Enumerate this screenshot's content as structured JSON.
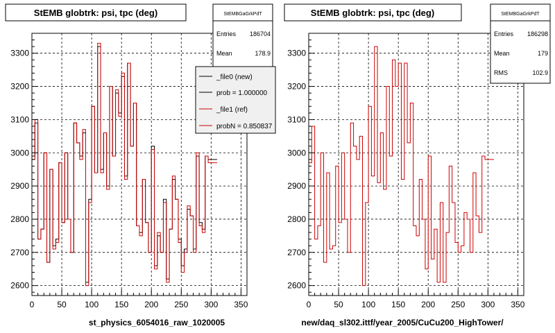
{
  "chart_data": [
    {
      "type": "histogram",
      "title": "StEMB globtrk: psi, tpc (deg)",
      "stats": {
        "name": "StEMBGaGrkPdT",
        "rows": [
          {
            "label": "Entries",
            "value": "186704"
          },
          {
            "label": "Mean",
            "value": "178.9"
          }
        ]
      },
      "legend": {
        "placement": "top-right",
        "entries": [
          {
            "label": "_file0 (new)",
            "color": "#000000"
          },
          {
            "label": "prob = 1.000000",
            "color": "#000000"
          },
          {
            "label": "_file1 (ref)",
            "color": "#cc0000"
          },
          {
            "label": "probN = 0.850837",
            "color": "#cc0000"
          }
        ]
      },
      "xlabel": "st_physics_6054016_raw_1020005",
      "xlim": [
        0,
        360
      ],
      "ylim": [
        2570,
        3360
      ],
      "x_ticks": [
        0,
        50,
        100,
        150,
        200,
        250,
        300,
        350
      ],
      "y_ticks": [
        2600,
        2700,
        2800,
        2900,
        3000,
        3100,
        3200,
        3300
      ],
      "grid": true,
      "bin_width": 5,
      "series": [
        {
          "name": "_file0 (new)",
          "color": "#000000",
          "values": [
            2990,
            3090,
            2740,
            2770,
            3000,
            2670,
            2950,
            2720,
            2740,
            2970,
            2790,
            3000,
            2800,
            2700,
            3090,
            3030,
            2990,
            3060,
            2610,
            2860,
            3140,
            2940,
            3320,
            2950,
            3060,
            2900,
            3200,
            2990,
            3180,
            3120,
            3230,
            2930,
            3270,
            3020,
            3150,
            2780,
            2760,
            2920,
            2790,
            2700,
            3020,
            2660,
            2750,
            2700,
            2860,
            2620,
            2770,
            2920,
            2860,
            2740,
            2660,
            2710,
            2830,
            2810,
            2710,
            2990,
            2790,
            2770,
            2990,
            2980,
            2980,
            2980
          ]
        },
        {
          "name": "_file1 (ref)",
          "color": "#cc0000",
          "values": [
            2980,
            3100,
            2740,
            2770,
            3000,
            2670,
            2950,
            2710,
            2730,
            2970,
            2790,
            3000,
            2800,
            2700,
            3090,
            3030,
            2980,
            3070,
            2600,
            2850,
            3140,
            2940,
            3330,
            2940,
            3060,
            2890,
            3200,
            2990,
            3190,
            3110,
            3240,
            2920,
            3270,
            3020,
            3150,
            2780,
            2750,
            2920,
            2790,
            2700,
            3010,
            2650,
            2760,
            2700,
            2850,
            2610,
            2770,
            2930,
            2860,
            2730,
            2640,
            2700,
            2840,
            2810,
            2700,
            3000,
            2780,
            2760,
            2990,
            2970,
            2970,
            2970
          ]
        }
      ]
    },
    {
      "type": "histogram",
      "title": "StEMB globtrk: psi, tpc (deg)",
      "stats": {
        "name": "StEMBGaGrkPdT",
        "rows": [
          {
            "label": "Entries",
            "value": "186298"
          },
          {
            "label": "Mean",
            "value": "179"
          },
          {
            "label": "RMS",
            "value": "102.9"
          }
        ]
      },
      "xlabel": "new/daq_sl302.ittf/year_2005/CuCu200_HighTower/",
      "xlim": [
        0,
        360
      ],
      "ylim": [
        2570,
        3360
      ],
      "x_ticks": [
        0,
        50,
        100,
        150,
        200,
        250,
        300,
        350
      ],
      "y_ticks": [
        2600,
        2700,
        2800,
        2900,
        3000,
        3100,
        3200,
        3300
      ],
      "grid": true,
      "bin_width": 5,
      "series": [
        {
          "color": "#cc0000",
          "values": [
            2970,
            3080,
            2740,
            2780,
            3000,
            2670,
            2940,
            2710,
            2720,
            2960,
            2790,
            3000,
            2800,
            2700,
            3090,
            3020,
            2980,
            3050,
            2600,
            2850,
            3140,
            2930,
            3320,
            2910,
            3060,
            2890,
            3200,
            2990,
            3280,
            3200,
            3270,
            2920,
            3270,
            3030,
            3150,
            2780,
            2750,
            2920,
            2800,
            2650,
            2990,
            2680,
            2770,
            2610,
            2850,
            2610,
            2760,
            2960,
            2850,
            2730,
            2700,
            2720,
            2820,
            2800,
            2700,
            2940,
            2810,
            2760,
            2990,
            2980,
            2980,
            2980
          ]
        }
      ]
    }
  ]
}
